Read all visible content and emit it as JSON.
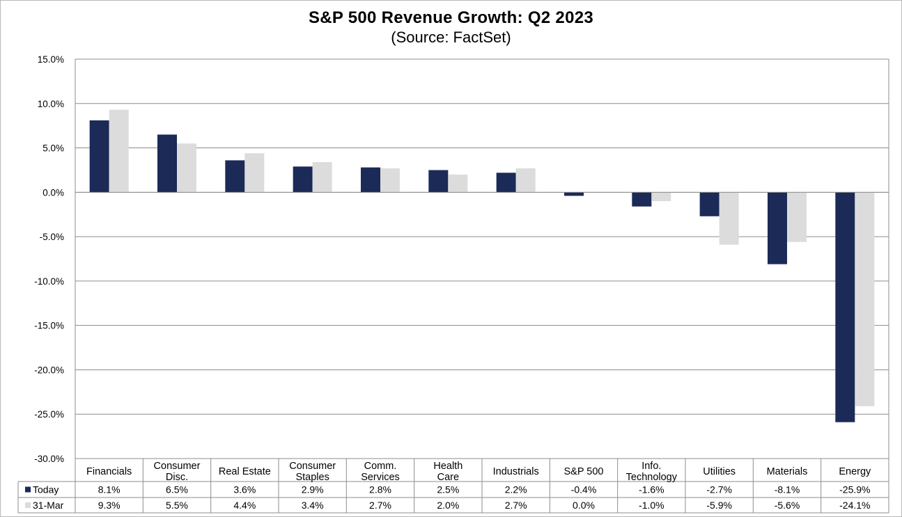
{
  "chart_data": {
    "type": "bar",
    "title": "S&P 500 Revenue Growth: Q2 2023",
    "subtitle": "(Source: FactSet)",
    "ylim": [
      -30,
      15
    ],
    "yticks": [
      "15.0%",
      "10.0%",
      "5.0%",
      "0.0%",
      "-5.0%",
      "-10.0%",
      "-15.0%",
      "-20.0%",
      "-25.0%",
      "-30.0%"
    ],
    "grid": true,
    "legend": "data-table-left",
    "categories": [
      [
        "Financials"
      ],
      [
        "Consumer",
        "Disc."
      ],
      [
        "Real Estate"
      ],
      [
        "Consumer",
        "Staples"
      ],
      [
        "Comm.",
        "Services"
      ],
      [
        "Health",
        "Care"
      ],
      [
        "Industrials"
      ],
      [
        "S&P 500"
      ],
      [
        "Info.",
        "Technology"
      ],
      [
        "Utilities"
      ],
      [
        "Materials"
      ],
      [
        "Energy"
      ]
    ],
    "series": [
      {
        "name": "Today",
        "color": "#1b2a57",
        "values": [
          8.1,
          6.5,
          3.6,
          2.9,
          2.8,
          2.5,
          2.2,
          -0.4,
          -1.6,
          -2.7,
          -8.1,
          -25.9
        ],
        "labels": [
          "8.1%",
          "6.5%",
          "3.6%",
          "2.9%",
          "2.8%",
          "2.5%",
          "2.2%",
          "-0.4%",
          "-1.6%",
          "-2.7%",
          "-8.1%",
          "-25.9%"
        ]
      },
      {
        "name": "31-Mar",
        "color": "#dcdcdc",
        "values": [
          9.3,
          5.5,
          4.4,
          3.4,
          2.7,
          2.0,
          2.7,
          0.0,
          -1.0,
          -5.9,
          -5.6,
          -24.1
        ],
        "labels": [
          "9.3%",
          "5.5%",
          "4.4%",
          "3.4%",
          "2.7%",
          "2.0%",
          "2.7%",
          "0.0%",
          "-1.0%",
          "-5.9%",
          "-5.6%",
          "-24.1%"
        ]
      }
    ]
  }
}
